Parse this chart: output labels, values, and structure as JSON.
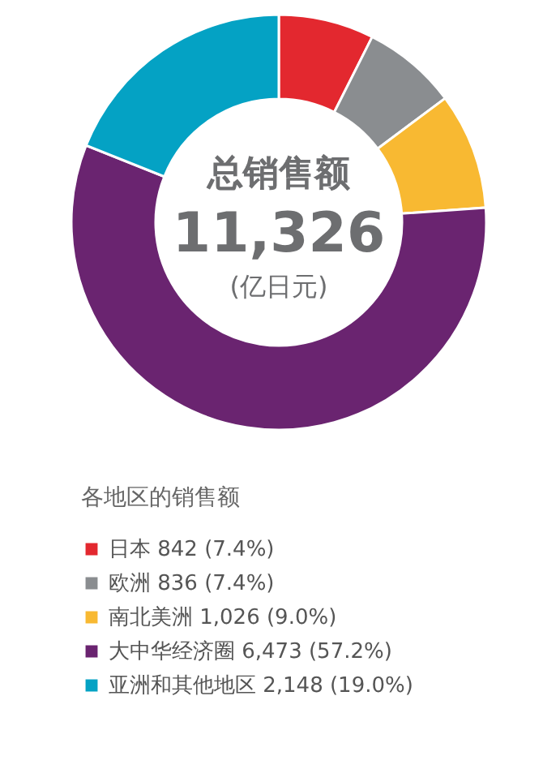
{
  "chart_data": {
    "type": "donut",
    "title": "总销售额",
    "annotations": [
      "11,326",
      "(亿日元)"
    ],
    "legend_title": "各地区的销售额",
    "legend": "bottom",
    "categories": [
      "日本",
      "欧洲",
      "南北美洲",
      "大中华经济圈",
      "亚洲和其他地区"
    ],
    "values": [
      842,
      836,
      1026,
      6473,
      2148
    ],
    "value_labels": [
      "842 (7.4%)",
      "836 (7.4%)",
      "1,026 (9.0%)",
      "6,473 (57.2%)",
      "2,148 (19.0%)"
    ],
    "colors": [
      "#e3282f",
      "#8a8d90",
      "#f8b932",
      "#6a2470",
      "#04a2c4"
    ]
  }
}
